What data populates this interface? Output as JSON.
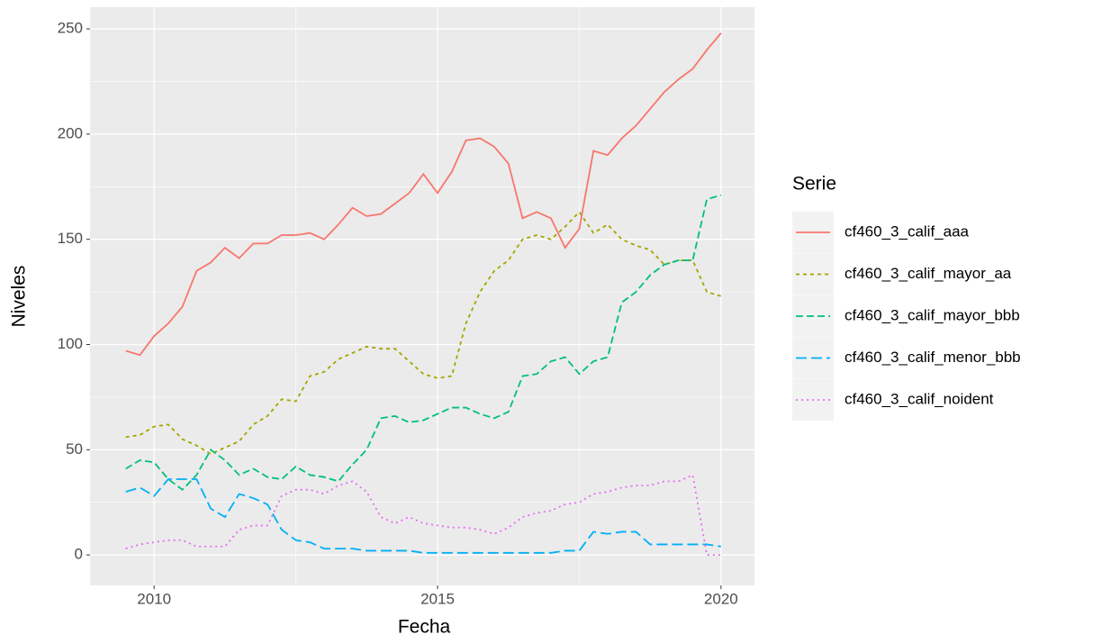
{
  "chart_data": {
    "type": "line",
    "x_label": "Fecha",
    "y_label": "Niveles",
    "legend_title": "Serie",
    "legend_position": "right",
    "grid": true,
    "minor_grid": true,
    "x": [
      2009.5,
      2009.75,
      2010,
      2010.25,
      2010.5,
      2010.75,
      2011,
      2011.25,
      2011.5,
      2011.75,
      2012,
      2012.25,
      2012.5,
      2012.75,
      2013,
      2013.25,
      2013.5,
      2013.75,
      2014,
      2014.25,
      2014.5,
      2014.75,
      2015,
      2015.25,
      2015.5,
      2015.75,
      2016,
      2016.25,
      2016.5,
      2016.75,
      2017,
      2017.25,
      2017.5,
      2017.75,
      2018,
      2018.25,
      2018.5,
      2018.75,
      2019,
      2019.25,
      2019.5,
      2019.75,
      2020
    ],
    "xlim": [
      2008.87,
      2020.59
    ],
    "xticks": [
      2010,
      2015,
      2020
    ],
    "ylim": [
      -14.5,
      260.3
    ],
    "yticks": [
      0,
      50,
      100,
      150,
      200,
      250
    ],
    "series": [
      {
        "name": "cf460_3_calif_aaa",
        "color": "#F8766D",
        "dash": "none",
        "values": [
          97,
          95,
          104,
          110,
          118,
          135,
          139,
          146,
          141,
          148,
          148,
          152,
          152,
          153,
          150,
          157,
          165,
          161,
          162,
          167,
          172,
          181,
          172,
          182,
          197,
          198,
          194,
          186,
          160,
          163,
          160,
          146,
          155,
          192,
          190,
          198,
          204,
          212,
          220,
          226,
          231,
          240,
          248
        ]
      },
      {
        "name": "cf460_3_calif_mayor_aa",
        "color": "#A3A500",
        "dash": "4 4",
        "values": [
          56,
          57,
          61,
          62,
          55,
          52,
          48,
          51,
          54,
          62,
          66,
          74,
          73,
          85,
          87,
          93,
          96,
          99,
          98,
          98,
          92,
          86,
          84,
          85,
          110,
          125,
          135,
          140,
          150,
          152,
          150,
          156,
          163,
          153,
          157,
          150,
          147,
          145,
          138,
          140,
          140,
          125,
          123
        ]
      },
      {
        "name": "cf460_3_calif_mayor_bbb",
        "color": "#00BF7D",
        "dash": "8 4",
        "values": [
          41,
          45,
          44,
          36,
          31,
          38,
          50,
          45,
          38,
          41,
          37,
          36,
          42,
          38,
          37,
          35,
          43,
          50,
          65,
          66,
          63,
          64,
          67,
          70,
          70,
          67,
          65,
          68,
          85,
          86,
          92,
          94,
          86,
          92,
          94,
          120,
          125,
          133,
          138,
          140,
          140,
          169,
          171
        ]
      },
      {
        "name": "cf460_3_calif_menor_bbb",
        "color": "#00B0F6",
        "dash": "12 5",
        "values": [
          30,
          32,
          28,
          36,
          36,
          36,
          22,
          18,
          29,
          27,
          24,
          12,
          7,
          6,
          3,
          3,
          3,
          2,
          2,
          2,
          2,
          1,
          1,
          1,
          1,
          1,
          1,
          1,
          1,
          1,
          1,
          2,
          2,
          11,
          10,
          11,
          11,
          5,
          5,
          5,
          5,
          5,
          4
        ]
      },
      {
        "name": "cf460_3_calif_noident",
        "color": "#E76BF3",
        "dash": "2 4",
        "values": [
          3,
          5,
          6,
          7,
          7,
          4,
          4,
          4,
          12,
          14,
          14,
          28,
          31,
          31,
          29,
          33,
          35,
          30,
          18,
          15,
          18,
          15,
          14,
          13,
          13,
          12,
          10,
          13,
          18,
          20,
          21,
          24,
          25,
          29,
          30,
          32,
          33,
          33,
          35,
          35,
          38,
          0,
          0
        ]
      }
    ]
  }
}
